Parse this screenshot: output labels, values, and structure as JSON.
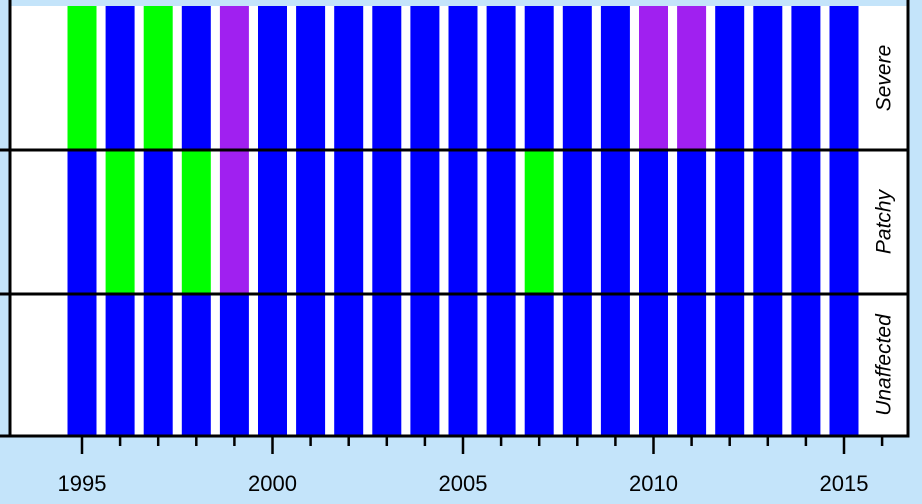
{
  "chart_data": {
    "type": "heatmap",
    "years": [
      1995,
      1996,
      1997,
      1998,
      1999,
      2000,
      2001,
      2002,
      2003,
      2004,
      2005,
      2006,
      2007,
      2008,
      2009,
      2010,
      2011,
      2012,
      2013,
      2014,
      2015
    ],
    "x_tick_labels": [
      "1995",
      "2000",
      "2005",
      "2010",
      "2015"
    ],
    "xlim": [
      1993.5,
      2016.7
    ],
    "grid": false,
    "rows": [
      {
        "label": "Severe",
        "values": [
          "green",
          "blue",
          "green",
          "blue",
          "purple",
          "blue",
          "blue",
          "blue",
          "blue",
          "blue",
          "blue",
          "blue",
          "blue",
          "blue",
          "blue",
          "purple",
          "purple",
          "blue",
          "blue",
          "blue",
          "blue"
        ]
      },
      {
        "label": "Patchy",
        "values": [
          "blue",
          "green",
          "blue",
          "green",
          "purple",
          "blue",
          "blue",
          "blue",
          "blue",
          "blue",
          "blue",
          "blue",
          "green",
          "blue",
          "blue",
          "blue",
          "blue",
          "blue",
          "blue",
          "blue",
          "blue"
        ]
      },
      {
        "label": "Unaffected",
        "values": [
          "blue",
          "blue",
          "blue",
          "blue",
          "blue",
          "blue",
          "blue",
          "blue",
          "blue",
          "blue",
          "blue",
          "blue",
          "blue",
          "blue",
          "blue",
          "blue",
          "blue",
          "blue",
          "blue",
          "blue",
          "blue"
        ]
      }
    ],
    "colors": {
      "blue": "#0000ff",
      "green": "#00ff00",
      "purple": "#a020f0",
      "background": "#c4e4fa",
      "plot_background": "#ffffff"
    }
  }
}
